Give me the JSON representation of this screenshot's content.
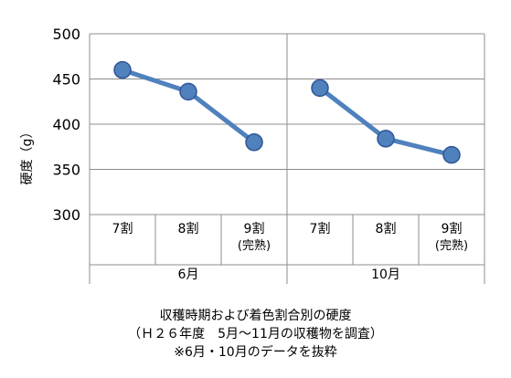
{
  "chart_data": {
    "type": "line",
    "ylabel": "硬度（g）",
    "ylim": [
      300,
      500
    ],
    "yticks": [
      "300",
      "350",
      "400",
      "450",
      "500"
    ],
    "grid": true,
    "color": "#4f81bd",
    "groups": [
      {
        "name": "6月",
        "categories": [
          {
            "label": "7割",
            "sublabel": ""
          },
          {
            "label": "8割",
            "sublabel": ""
          },
          {
            "label": "9割",
            "sublabel": "(完熟)"
          }
        ],
        "values": [
          460,
          436,
          380
        ]
      },
      {
        "name": "10月",
        "categories": [
          {
            "label": "7割",
            "sublabel": ""
          },
          {
            "label": "8割",
            "sublabel": ""
          },
          {
            "label": "9割",
            "sublabel": "(完熟)"
          }
        ],
        "values": [
          440,
          384,
          366
        ]
      }
    ]
  },
  "caption": {
    "line1": "収穫時期および着色割合別の硬度",
    "line2": "（Ｈ２６年度　5月～11月の収穫物を調査）",
    "line3": "※6月・10月のデータを抜粋"
  }
}
